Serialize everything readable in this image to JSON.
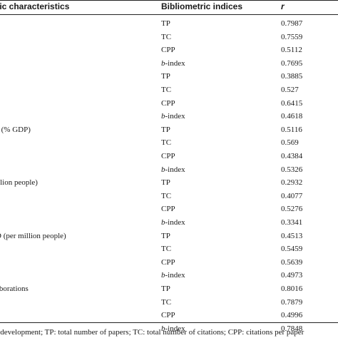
{
  "header": {
    "col1": "ific characteristics",
    "col2": "Bibliometric indices",
    "col3": "r"
  },
  "rows": [
    {
      "char": "",
      "index_prefix": "",
      "index": "TP",
      "r": "0.7987"
    },
    {
      "char": "",
      "index_prefix": "",
      "index": "TC",
      "r": "0.7559"
    },
    {
      "char": "",
      "index_prefix": "",
      "index": "CPP",
      "r": "0.5112"
    },
    {
      "char": "",
      "index_prefix": "b",
      "index": "-index",
      "r": "0.7695"
    },
    {
      "char": "",
      "index_prefix": "",
      "index": "TP",
      "r": "0.3885"
    },
    {
      "char": "",
      "index_prefix": "",
      "index": "TC",
      "r": "0.527"
    },
    {
      "char": "",
      "index_prefix": "",
      "index": "CPP",
      "r": "0.6415"
    },
    {
      "char": "",
      "index_prefix": "b",
      "index": "-index",
      "r": "0.4618"
    },
    {
      "char": "e (% GDP)",
      "index_prefix": "",
      "index": "TP",
      "r": "0.5116"
    },
    {
      "char": "",
      "index_prefix": "",
      "index": "TC",
      "r": "0.569"
    },
    {
      "char": "",
      "index_prefix": "",
      "index": "CPP",
      "r": "0.4384"
    },
    {
      "char": "",
      "index_prefix": "b",
      "index": "-index",
      "r": "0.5326"
    },
    {
      "char": "illion people)",
      "index_prefix": "",
      "index": "TP",
      "r": "0.2932"
    },
    {
      "char": "",
      "index_prefix": "",
      "index": "TC",
      "r": "0.4077"
    },
    {
      "char": "",
      "index_prefix": "",
      "index": "CPP",
      "r": "0.5276"
    },
    {
      "char": "",
      "index_prefix": "b",
      "index": "-index",
      "r": "0.3341"
    },
    {
      "char": "D (per million people)",
      "index_prefix": "",
      "index": "TP",
      "r": "0.4513"
    },
    {
      "char": "",
      "index_prefix": "",
      "index": "TC",
      "r": "0.5459"
    },
    {
      "char": "",
      "index_prefix": "",
      "index": "CPP",
      "r": "0.5639"
    },
    {
      "char": "",
      "index_prefix": "b",
      "index": "-index",
      "r": "0.4973"
    },
    {
      "char": "aborations",
      "index_prefix": "",
      "index": "TP",
      "r": "0.8016"
    },
    {
      "char": "",
      "index_prefix": "",
      "index": "TC",
      "r": "0.7879"
    },
    {
      "char": "",
      "index_prefix": "",
      "index": "CPP",
      "r": "0.4996"
    },
    {
      "char": "",
      "index_prefix": "b",
      "index": "-index",
      "r": "0.7848"
    }
  ],
  "footnote": "d development; TP: total number of papers; TC: total number of citations; CPP: citations per paper"
}
